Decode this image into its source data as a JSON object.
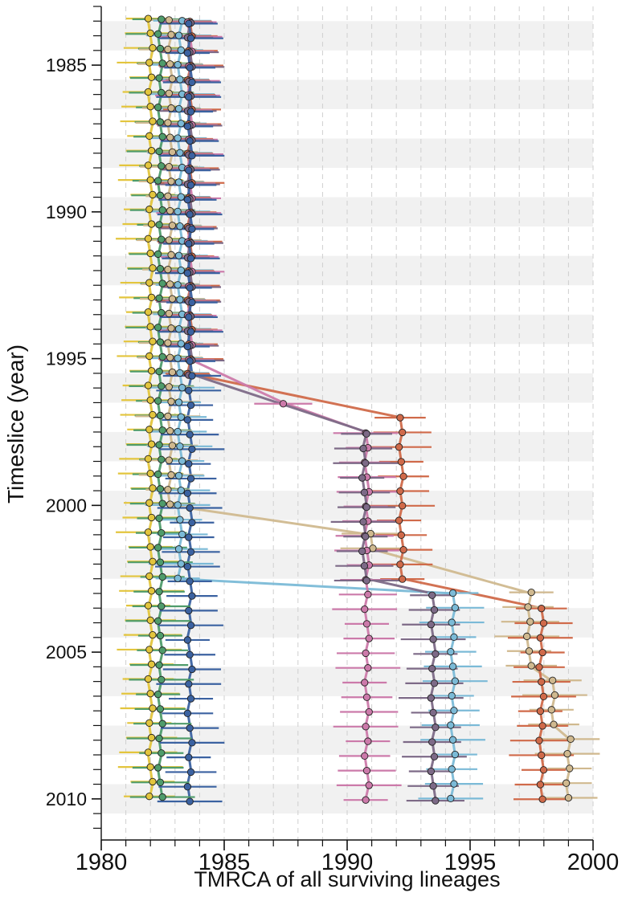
{
  "chart_data": {
    "type": "scatter",
    "title": "",
    "xlabel": "TMRCA of all surviving lineages",
    "ylabel": "Timeslice (year)",
    "xlim": [
      1980,
      2000
    ],
    "ylim": [
      2011.4,
      1983.0
    ],
    "x_ticks": [
      "1980",
      "1985",
      "1990",
      "1995",
      "2000"
    ],
    "y_ticks": [
      "1985",
      "1990",
      "1995",
      "2000",
      "2005",
      "2010"
    ],
    "grid": "vertical dashed gridlines every year",
    "background_bands": "alternating grey bands, one per two-year period",
    "legend": "none",
    "timeslices": {
      "start": 1983.5,
      "step": 0.5,
      "count": 56
    },
    "series": [
      {
        "color": "#e3c53d",
        "segments": [
          {
            "from": 1983.5,
            "to": 2010.0,
            "x": 1982.0
          }
        ]
      },
      {
        "color": "#4f9c6b",
        "segments": [
          {
            "from": 1983.5,
            "to": 2010.0,
            "x": 1982.4
          }
        ]
      },
      {
        "color": "#d0b98f",
        "segments": [
          {
            "from": 1983.5,
            "to": 2000.0,
            "x": 1982.8
          },
          {
            "from": 2001.0,
            "to": 2001.5,
            "x": 1991.0
          },
          {
            "from": 2003.0,
            "to": 2005.5,
            "x": 1997.4
          },
          {
            "from": 2006.0,
            "to": 2007.5,
            "x": 1998.4
          },
          {
            "from": 2008.0,
            "to": 2010.0,
            "x": 1999.0
          }
        ]
      },
      {
        "color": "#7bbad7",
        "segments": [
          {
            "from": 1983.5,
            "to": 2002.5,
            "x": 1983.2
          },
          {
            "from": 2003.0,
            "to": 2010.0,
            "x": 1994.3
          }
        ]
      },
      {
        "color": "#d06a4a",
        "segments": [
          {
            "from": 1983.5,
            "to": 1995.5,
            "x": 1983.6
          },
          {
            "from": 1997.0,
            "to": 2002.5,
            "x": 1992.2
          },
          {
            "from": 2003.5,
            "to": 2010.0,
            "x": 1997.9
          }
        ]
      },
      {
        "color": "#cc7aaa",
        "segments": [
          {
            "from": 1983.5,
            "to": 1995.0,
            "x": 1983.6
          },
          {
            "from": 1996.5,
            "to": 1996.5,
            "x": 1987.4
          },
          {
            "from": 1997.5,
            "to": 2010.0,
            "x": 1990.8
          }
        ]
      },
      {
        "color": "#7d6a87",
        "segments": [
          {
            "from": 1983.5,
            "to": 1995.5,
            "x": 1983.6
          },
          {
            "from": 1997.5,
            "to": 2002.5,
            "x": 1990.7
          },
          {
            "from": 2003.0,
            "to": 2010.0,
            "x": 1993.5
          }
        ]
      },
      {
        "color": "#3b62a1",
        "segments": [
          {
            "from": 1983.5,
            "to": 2010.0,
            "x": 1983.6
          }
        ]
      }
    ]
  }
}
